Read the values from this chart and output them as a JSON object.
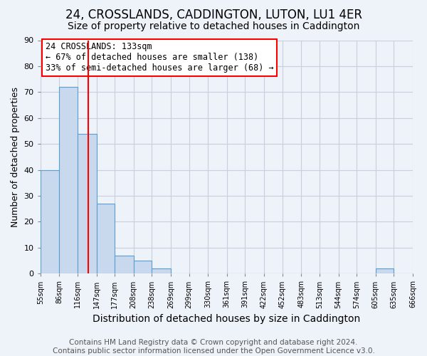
{
  "title": "24, CROSSLANDS, CADDINGTON, LUTON, LU1 4ER",
  "subtitle": "Size of property relative to detached houses in Caddington",
  "xlabel": "Distribution of detached houses by size in Caddington",
  "ylabel": "Number of detached properties",
  "footer_line1": "Contains HM Land Registry data © Crown copyright and database right 2024.",
  "footer_line2": "Contains public sector information licensed under the Open Government Licence v3.0.",
  "annotation_line1": "24 CROSSLANDS: 133sqm",
  "annotation_line2": "← 67% of detached houses are smaller (138)",
  "annotation_line3": "33% of semi-detached houses are larger (68) →",
  "bin_edges": [
    55,
    86,
    116,
    147,
    177,
    208,
    238,
    269,
    299,
    330,
    361,
    391,
    422,
    452,
    483,
    513,
    544,
    574,
    605,
    635,
    666
  ],
  "bar_heights": [
    40,
    72,
    54,
    27,
    7,
    5,
    2,
    0,
    0,
    0,
    0,
    0,
    0,
    0,
    0,
    0,
    0,
    0,
    2,
    0
  ],
  "bar_color": "#c8d8ed",
  "bar_edge_color": "#5a9fd4",
  "red_line_x": 133,
  "ylim": [
    0,
    90
  ],
  "yticks": [
    0,
    10,
    20,
    30,
    40,
    50,
    60,
    70,
    80,
    90
  ],
  "title_fontsize": 12,
  "subtitle_fontsize": 10,
  "xlabel_fontsize": 10,
  "ylabel_fontsize": 9,
  "annotation_fontsize": 8.5,
  "footer_fontsize": 7.5,
  "background_color": "#eef2f9",
  "plot_bg_color": "#eef2f9",
  "grid_color": "#c8d0e0"
}
